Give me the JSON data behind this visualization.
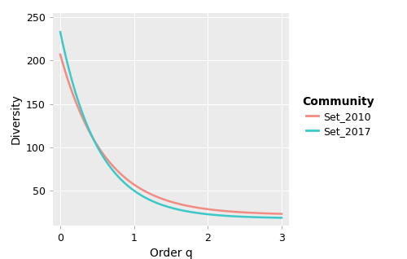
{
  "xlabel": "Order q",
  "ylabel": "Diversity",
  "xlim": [
    -0.1,
    3.1
  ],
  "ylim": [
    10,
    255
  ],
  "yticks": [
    50,
    100,
    150,
    200,
    250
  ],
  "xticks": [
    0,
    1,
    2,
    3
  ],
  "bg_color": "#EBEBEB",
  "grid_color": "#FFFFFF",
  "line_set2010_color": "#F28B82",
  "line_set2017_color": "#3CC8C8",
  "line_width": 1.8,
  "legend_title": "Community",
  "legend_labels": [
    "Set_2010",
    "Set_2017"
  ],
  "set2010_q0": 207,
  "set2010_q1": 57,
  "set2010_q3": 30,
  "set2010_dinf": 22,
  "set2017_q0": 233,
  "set2017_q1": 50,
  "set2017_q3": 25,
  "set2017_dinf": 18,
  "figwidth": 5.0,
  "figheight": 3.18,
  "dpi": 100
}
